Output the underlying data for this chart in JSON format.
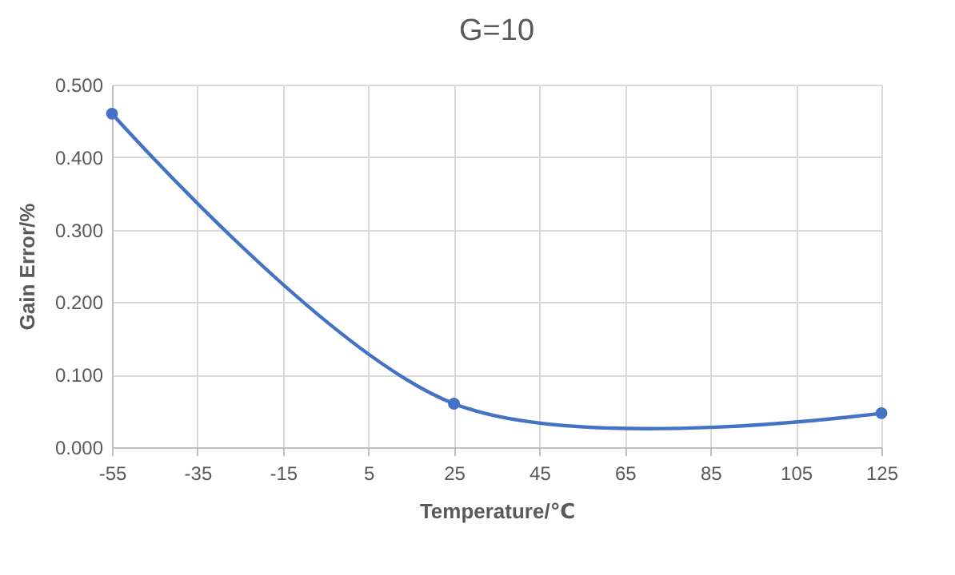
{
  "chart_data": {
    "type": "line",
    "title": "G=10",
    "xlabel": "Temperature/℃",
    "ylabel": "Gain Error/%",
    "x": [
      -55,
      25,
      125
    ],
    "series": [
      {
        "color": "#4472c4",
        "values": [
          0.46,
          0.06,
          0.047
        ]
      }
    ],
    "xlim": [
      -55,
      125
    ],
    "xticks": [
      -55,
      -35,
      -15,
      5,
      25,
      45,
      65,
      85,
      105,
      125
    ],
    "ylim": [
      0,
      0.5
    ],
    "yticks": [
      {
        "value": 0,
        "label": "0.000"
      },
      {
        "value": 0.1,
        "label": "0.100"
      },
      {
        "value": 0.2,
        "label": "0.200"
      },
      {
        "value": 0.3,
        "label": "0.300"
      },
      {
        "value": 0.4,
        "label": "0.400"
      },
      {
        "value": 0.5,
        "label": "0.500"
      }
    ],
    "grid": true,
    "marker": "circle",
    "line_style": "solid"
  }
}
